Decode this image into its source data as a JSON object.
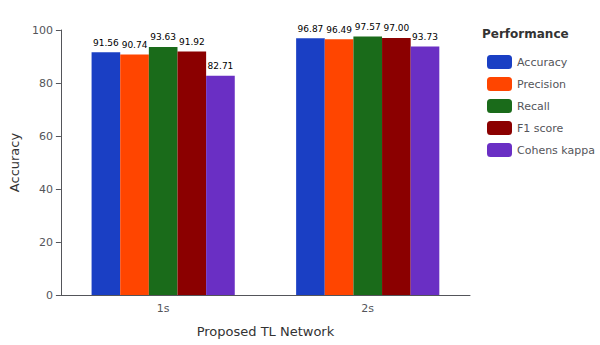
{
  "chart_data": {
    "type": "bar",
    "xlabel": "Proposed TL Network",
    "ylabel": "Accuracy",
    "legend_title": "Performance",
    "categories": [
      "1s",
      "2s"
    ],
    "series": [
      {
        "name": "Accuracy",
        "color": "#1a3fc4",
        "values": [
          91.56,
          96.87
        ],
        "value_labels": [
          "91.56",
          "96.87"
        ]
      },
      {
        "name": "Precision",
        "color": "#FF4500",
        "values": [
          90.74,
          96.49
        ],
        "value_labels": [
          "90.74",
          "96.49"
        ]
      },
      {
        "name": "Recall",
        "color": "#1a6b1a",
        "values": [
          93.63,
          97.57
        ],
        "value_labels": [
          "93.63",
          "97.57"
        ]
      },
      {
        "name": "F1 score",
        "color": "#8B0000",
        "values": [
          91.92,
          97.0
        ],
        "value_labels": [
          "91.92",
          "97.00"
        ]
      },
      {
        "name": "Cohens kappa",
        "color": "#6A2FC4",
        "values": [
          82.71,
          93.73
        ],
        "value_labels": [
          "82.71",
          "93.73"
        ]
      }
    ],
    "ylim": [
      0,
      100
    ],
    "yticks": [
      0,
      20,
      40,
      60,
      80,
      100
    ],
    "grid": false,
    "legend": "right",
    "data_labels": true
  }
}
